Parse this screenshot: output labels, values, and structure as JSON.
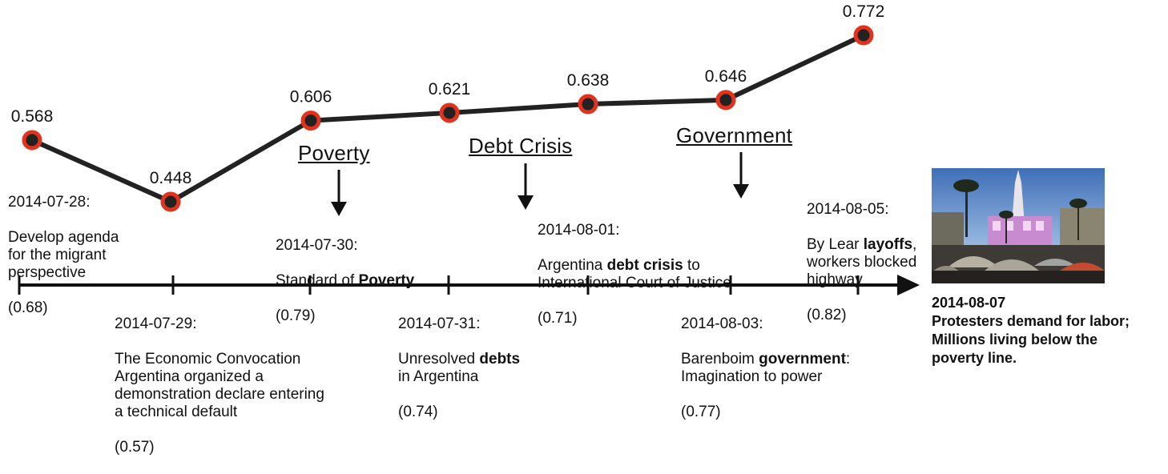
{
  "chart_data": {
    "type": "line",
    "series": [
      {
        "values": [
          0.568,
          0.448,
          0.606,
          0.621,
          0.638,
          0.646,
          0.772
        ]
      }
    ]
  },
  "topics": [
    {
      "id": "poverty",
      "label": "Poverty"
    },
    {
      "id": "debt",
      "label": "Debt Crisis"
    },
    {
      "id": "government",
      "label": "Government"
    }
  ],
  "events": [
    {
      "date": "2014-07-28:",
      "text": "Develop agenda\nfor the migrant\nperspective",
      "score": "(0.68)"
    },
    {
      "date": "2014-07-29:",
      "text": "The Economic Convocation\nArgentina organized a\ndemonstration declare entering\na technical default",
      "score": "(0.57)"
    },
    {
      "date": "2014-07-30:",
      "pre": "Standard of ",
      "bold": "Poverty",
      "post": "",
      "score": "(0.79)"
    },
    {
      "date": "2014-07-31:",
      "pre": "Unresolved ",
      "bold": "debts",
      "post": "\nin Argentina",
      "score": "(0.74)"
    },
    {
      "date": "2014-08-01:",
      "pre": "Argentina ",
      "bold": "debt crisis",
      "post": " to\nInternational Court of Justice",
      "score": "(0.71)"
    },
    {
      "date": "2014-08-03:",
      "pre": "Barenboim ",
      "bold": "government",
      "post": ":\nImagination to power",
      "score": "(0.77)"
    },
    {
      "date": "2014-08-05:",
      "pre": "By Lear ",
      "bold": "layoffs",
      "post": ",\nworkers blocked\nhighway",
      "score": "(0.82)"
    }
  ],
  "final_event": {
    "date": "2014-08-07",
    "lines": [
      "Protesters demand for labor;",
      "Millions living below the",
      "poverty line."
    ]
  },
  "colors": {
    "line": "#222222",
    "marker_fill": "#222222",
    "marker_ring": "#e0321c",
    "axis": "#111111"
  }
}
